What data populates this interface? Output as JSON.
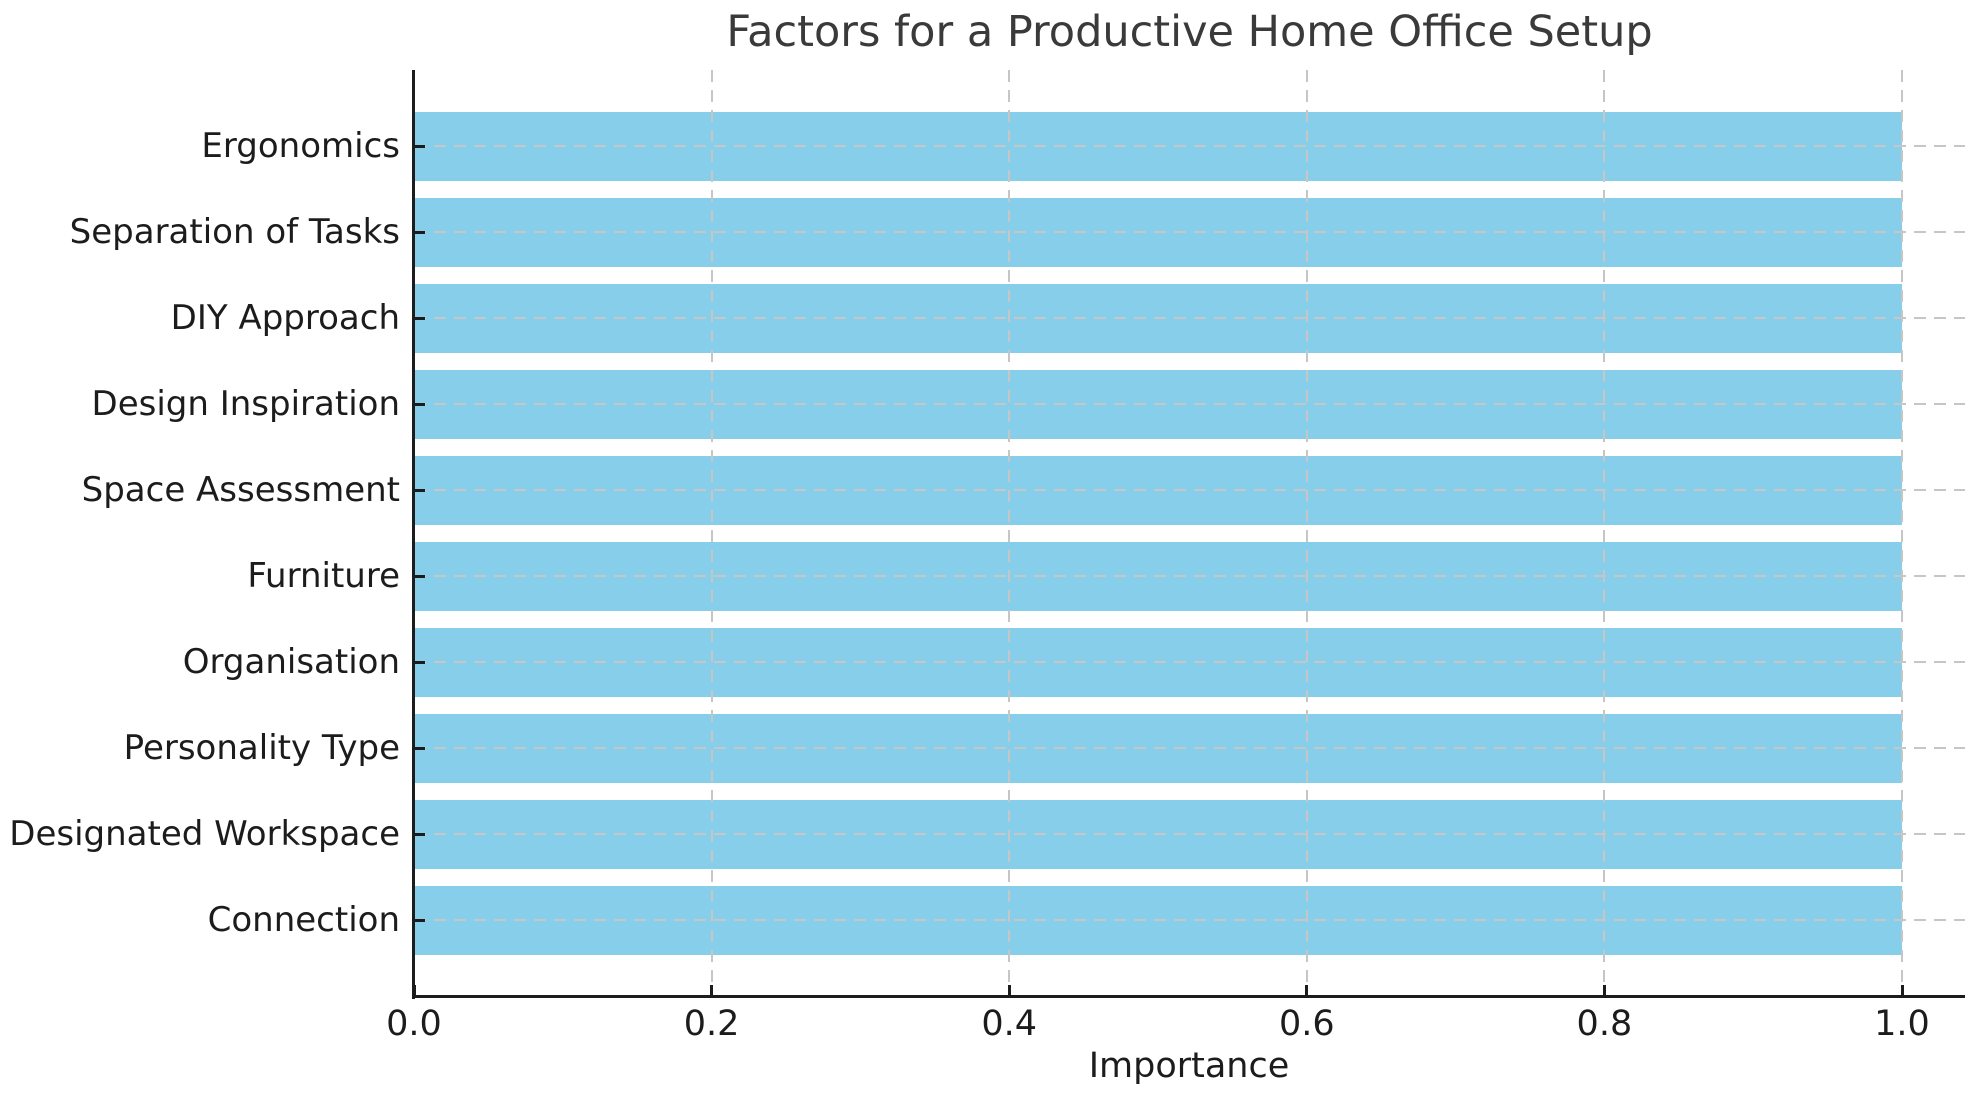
{
  "chart_data": {
    "type": "bar",
    "orientation": "horizontal",
    "title": "Factors for a Productive Home Office Setup",
    "xlabel": "Importance",
    "ylabel": "",
    "categories": [
      "Ergonomics",
      "Separation of Tasks",
      "DIY Approach",
      "Design Inspiration",
      "Space Assessment",
      "Furniture",
      "Organisation",
      "Personality Type",
      "Designated Workspace",
      "Connection"
    ],
    "values": [
      1.0,
      1.0,
      1.0,
      1.0,
      1.0,
      1.0,
      1.0,
      1.0,
      1.0,
      1.0
    ],
    "xlim": [
      0.0,
      1.05
    ],
    "xticks": [
      0.0,
      0.2,
      0.4,
      0.6,
      0.8,
      1.0
    ],
    "xtick_labels": [
      "0.0",
      "0.2",
      "0.4",
      "0.6",
      "0.8",
      "1.0"
    ],
    "grid": "both-dashed",
    "legend_position": "none",
    "bar_height_fraction": 0.8
  },
  "colors": {
    "bar": "#87CEEB",
    "grid": "#c6c6c6",
    "axis": "#1c1c1c",
    "tick_text": "#1c1c1c",
    "title_text": "#3a3a3a",
    "background": "#ffffff"
  }
}
